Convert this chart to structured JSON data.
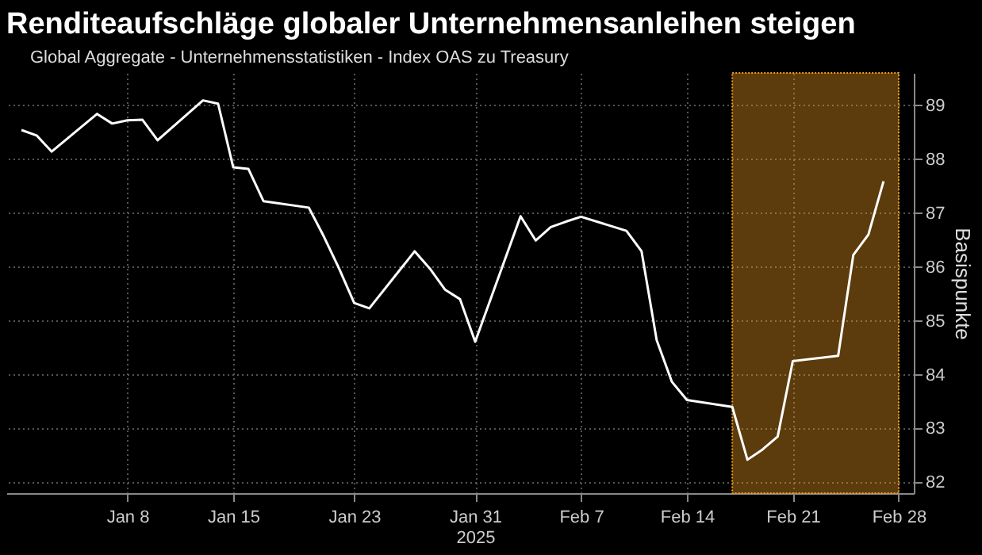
{
  "chart_data": {
    "type": "line",
    "title": "Renditeaufschläge globaler Unternehmensanleihen steigen",
    "ylabel": "Basispunkte",
    "x": [
      "2025-01-01",
      "2025-01-02",
      "2025-01-03",
      "2025-01-06",
      "2025-01-07",
      "2025-01-08",
      "2025-01-09",
      "2025-01-10",
      "2025-01-13",
      "2025-01-14",
      "2025-01-15",
      "2025-01-16",
      "2025-01-17",
      "2025-01-20",
      "2025-01-21",
      "2025-01-22",
      "2025-01-23",
      "2025-01-24",
      "2025-01-27",
      "2025-01-28",
      "2025-01-29",
      "2025-01-30",
      "2025-01-31",
      "2025-02-03",
      "2025-02-04",
      "2025-02-05",
      "2025-02-06",
      "2025-02-07",
      "2025-02-10",
      "2025-02-11",
      "2025-02-12",
      "2025-02-13",
      "2025-02-14",
      "2025-02-17",
      "2025-02-18",
      "2025-02-19",
      "2025-02-20",
      "2025-02-21",
      "2025-02-24",
      "2025-02-25",
      "2025-02-26",
      "2025-02-27"
    ],
    "series": [
      {
        "name": "Global Aggregate - Unternehmensstatistiken - Index OAS zu Treasury",
        "color": "#ffffff",
        "values": [
          88.54,
          88.44,
          88.14,
          88.84,
          88.66,
          88.72,
          88.73,
          88.35,
          89.09,
          89.03,
          87.85,
          87.82,
          87.22,
          87.1,
          86.56,
          85.97,
          85.33,
          85.23,
          86.29,
          85.97,
          85.58,
          85.4,
          84.61,
          86.94,
          86.49,
          86.74,
          86.84,
          86.93,
          86.67,
          86.29,
          84.64,
          83.87,
          83.53,
          83.4,
          82.42,
          82.61,
          82.85,
          84.25,
          84.35,
          86.22,
          86.6,
          87.59
        ]
      }
    ],
    "xlim": [
      "2024-12-31",
      "2025-03-01"
    ],
    "xticks": [
      {
        "value": "2025-01-08",
        "label": "Jan 8"
      },
      {
        "value": "2025-01-15",
        "label": "Jan 15"
      },
      {
        "value": "2025-01-23",
        "label": "Jan 23"
      },
      {
        "value": "2025-01-31",
        "label": "Jan 31\n2025"
      },
      {
        "value": "2025-02-07",
        "label": "Feb 7"
      },
      {
        "value": "2025-02-14",
        "label": "Feb 14"
      },
      {
        "value": "2025-02-21",
        "label": "Feb 21"
      },
      {
        "value": "2025-02-28",
        "label": "Feb 28"
      }
    ],
    "ylim": [
      81.8,
      89.6
    ],
    "yticks": [
      82,
      83,
      84,
      85,
      86,
      87,
      88,
      89
    ],
    "bands": [
      {
        "axis": "x",
        "from": "2025-02-17",
        "to": "2025-02-28",
        "color": "#f39c1f"
      }
    ],
    "grid": true,
    "legend": "top left",
    "marker": "none",
    "line_style": "solid"
  }
}
